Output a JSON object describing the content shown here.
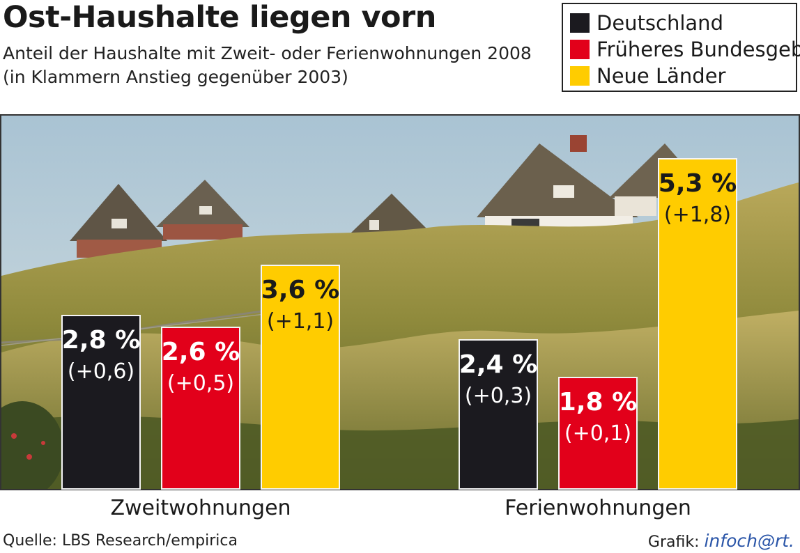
{
  "header": {
    "title": "Ost-Haushalte liegen vorn",
    "subtitle_line1": "Anteil der Haushalte mit Zweit- oder Ferienwohnungen 2008",
    "subtitle_line2": "(in Klammern Anstieg gegenüber 2003)"
  },
  "legend": [
    {
      "label": "Deutschland",
      "color": "#1b1a1f"
    },
    {
      "label": "Früheres Bundesgeb.",
      "color": "#e2001a"
    },
    {
      "label": "Neue Länder",
      "color": "#ffcc00"
    }
  ],
  "chart_data": {
    "type": "bar",
    "title": "Ost-Haushalte liegen vorn",
    "categories": [
      "Zweitwohnungen",
      "Ferienwohnungen"
    ],
    "series": [
      {
        "name": "Deutschland",
        "values": [
          2.8,
          2.4
        ],
        "changes": [
          "(+0,6)",
          "(+0,3)"
        ],
        "labels": [
          "2,8 %",
          "2,4 %"
        ],
        "color": "#1b1a1f",
        "text_color": "#ffffff"
      },
      {
        "name": "Früheres Bundesgeb.",
        "values": [
          2.6,
          1.8
        ],
        "changes": [
          "(+0,5)",
          "(+0,1)"
        ],
        "labels": [
          "2,6 %",
          "1,8 %"
        ],
        "color": "#e2001a",
        "text_color": "#ffffff"
      },
      {
        "name": "Neue Länder",
        "values": [
          3.6,
          5.3
        ],
        "changes": [
          "(+1,1)",
          "(+1,8)"
        ],
        "labels": [
          "3,6 %",
          "5,3 %"
        ],
        "color": "#ffcc00",
        "text_color": "#1a1a1a"
      }
    ],
    "ylim": [
      0,
      5.3
    ]
  },
  "footer": {
    "source": "Quelle: LBS Research/empirica",
    "credit_prefix": "Grafik:",
    "credit_brand": "infoch@rt."
  }
}
